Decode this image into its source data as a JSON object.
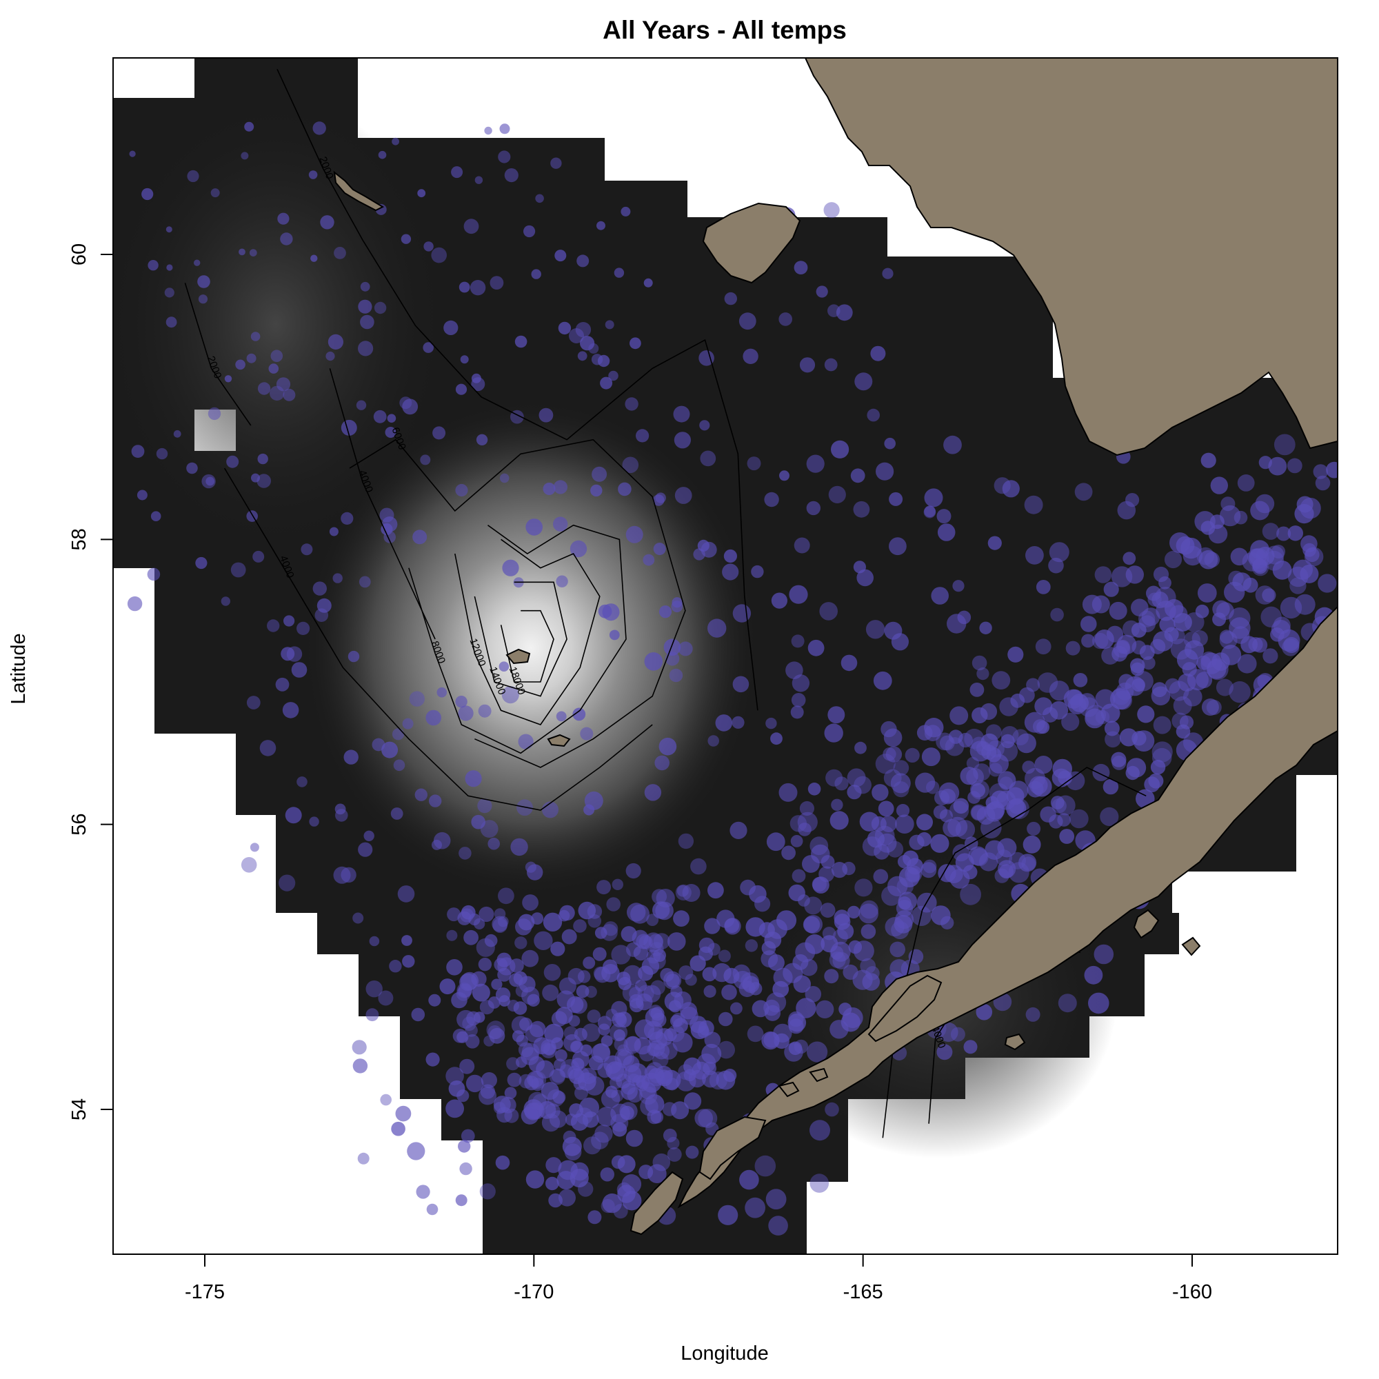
{
  "title": "All Years - All temps",
  "x_axis": {
    "label": "Longitude",
    "ticks": [
      "-175",
      "-170",
      "-165",
      "-160"
    ]
  },
  "y_axis": {
    "label": "Latitude",
    "ticks": [
      "54",
      "56",
      "58",
      "60"
    ]
  },
  "colors": {
    "land": "#8b7e6a",
    "grid_base": "#1b1b1b",
    "points": "#5a4fb8",
    "contour": "#000000",
    "background": "#ffffff"
  },
  "chart_data": {
    "type": "map",
    "xlim": [
      -176.4,
      -157.8
    ],
    "ylim": [
      52.2,
      60.6
    ],
    "x_ticks": [
      -175,
      -170,
      -165,
      -160
    ],
    "y_ticks": [
      54,
      56,
      58,
      60
    ],
    "density_peaks": [
      {
        "lon": -170.0,
        "lat": 57.2,
        "level": 1.0
      },
      {
        "lon": -173.5,
        "lat": 60.0,
        "level": 0.35
      },
      {
        "lon": -163.5,
        "lat": 54.6,
        "level": 0.22
      }
    ],
    "contours": [
      {
        "label": "2000",
        "points": [
          [
            -173.9,
            61.3
          ],
          [
            -173.2,
            60.6
          ],
          [
            -172.6,
            60.1
          ],
          [
            -171.8,
            59.5
          ],
          [
            -170.8,
            59.0
          ],
          [
            -169.5,
            58.7
          ],
          [
            -168.2,
            59.2
          ],
          [
            -167.4,
            59.4
          ],
          [
            -166.9,
            58.6
          ],
          [
            -166.8,
            57.6
          ],
          [
            -166.6,
            56.8
          ]
        ]
      },
      {
        "label": "2000",
        "points": [
          [
            -175.3,
            59.8
          ],
          [
            -174.9,
            59.2
          ],
          [
            -174.3,
            58.8
          ]
        ]
      },
      {
        "label": "4000",
        "points": [
          [
            -174.7,
            58.5
          ],
          [
            -173.8,
            57.8
          ],
          [
            -172.9,
            57.1
          ],
          [
            -171.9,
            56.6
          ],
          [
            -171.0,
            56.2
          ],
          [
            -169.9,
            56.1
          ],
          [
            -169.0,
            56.4
          ],
          [
            -168.2,
            56.7
          ]
        ]
      },
      {
        "label": "4000",
        "points": [
          [
            -173.1,
            59.2
          ],
          [
            -172.6,
            58.4
          ],
          [
            -172.0,
            57.8
          ],
          [
            -171.5,
            57.3
          ]
        ]
      },
      {
        "label": "6000",
        "points": [
          [
            -172.8,
            58.5
          ],
          [
            -172.1,
            58.7
          ],
          [
            -171.2,
            58.2
          ],
          [
            -170.2,
            58.6
          ],
          [
            -169.1,
            58.7
          ],
          [
            -168.2,
            58.3
          ],
          [
            -167.7,
            57.5
          ],
          [
            -168.2,
            56.9
          ],
          [
            -169.1,
            56.6
          ],
          [
            -169.9,
            56.4
          ],
          [
            -170.9,
            56.6
          ]
        ]
      },
      {
        "label": "8000",
        "points": [
          [
            -171.9,
            57.8
          ],
          [
            -171.5,
            57.2
          ],
          [
            -171.1,
            56.7
          ],
          [
            -170.2,
            56.5
          ],
          [
            -169.3,
            56.8
          ],
          [
            -168.6,
            57.3
          ],
          [
            -168.7,
            58.0
          ],
          [
            -169.4,
            58.1
          ],
          [
            -170.1,
            57.9
          ],
          [
            -170.7,
            58.1
          ]
        ]
      },
      {
        "label": "12000",
        "points": [
          [
            -171.2,
            57.9
          ],
          [
            -170.9,
            57.2
          ],
          [
            -170.5,
            56.8
          ],
          [
            -169.9,
            56.7
          ],
          [
            -169.3,
            57.1
          ],
          [
            -169.0,
            57.6
          ],
          [
            -169.4,
            57.9
          ],
          [
            -169.9,
            57.8
          ],
          [
            -170.5,
            58.0
          ]
        ]
      },
      {
        "label": "14000",
        "points": [
          [
            -170.9,
            57.6
          ],
          [
            -170.6,
            57.0
          ],
          [
            -169.9,
            56.9
          ],
          [
            -169.5,
            57.3
          ],
          [
            -169.7,
            57.7
          ],
          [
            -170.3,
            57.7
          ]
        ]
      },
      {
        "label": "18000",
        "points": [
          [
            -170.5,
            57.4
          ],
          [
            -170.3,
            57.0
          ],
          [
            -169.9,
            57.0
          ],
          [
            -169.7,
            57.3
          ],
          [
            -169.9,
            57.5
          ],
          [
            -170.2,
            57.5
          ]
        ]
      },
      {
        "label": "2000",
        "points": [
          [
            -164.7,
            53.8
          ],
          [
            -164.5,
            54.6
          ],
          [
            -164.1,
            55.4
          ],
          [
            -163.6,
            55.8
          ],
          [
            -162.5,
            56.1
          ],
          [
            -161.6,
            56.4
          ],
          [
            -160.7,
            56.2
          ]
        ]
      },
      {
        "label": "4000",
        "points": [
          [
            -164.0,
            53.9
          ],
          [
            -163.9,
            54.5
          ],
          [
            -163.2,
            55.0
          ],
          [
            -162.4,
            55.3
          ],
          [
            -161.7,
            55.1
          ]
        ]
      }
    ],
    "land_labels": []
  }
}
